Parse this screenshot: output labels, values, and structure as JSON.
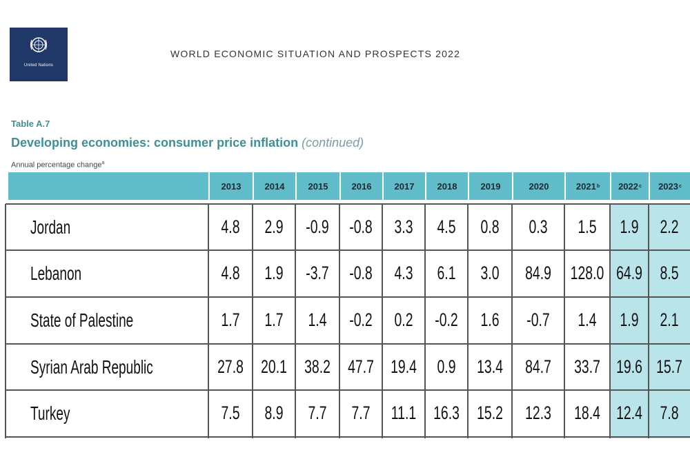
{
  "logo": {
    "text": "United Nations",
    "icon": "un-emblem-icon"
  },
  "header": {
    "title": "WORLD ECONOMIC SITUATION AND PROSPECTS 2022"
  },
  "table": {
    "label": "Table A.7",
    "title": "Developing economies: consumer price inflation",
    "title_note": "(continued)",
    "units": "Annual percentage change",
    "units_note": "a",
    "columns": [
      {
        "year": "2013",
        "note": ""
      },
      {
        "year": "2014",
        "note": ""
      },
      {
        "year": "2015",
        "note": ""
      },
      {
        "year": "2016",
        "note": ""
      },
      {
        "year": "2017",
        "note": ""
      },
      {
        "year": "2018",
        "note": ""
      },
      {
        "year": "2019",
        "note": ""
      },
      {
        "year": "2020",
        "note": ""
      },
      {
        "year": "2021",
        "note": "b"
      },
      {
        "year": "2022",
        "note": "c"
      },
      {
        "year": "2023",
        "note": "c"
      }
    ],
    "rows": [
      {
        "country": "Jordan",
        "values": [
          "4.8",
          "2.9",
          "-0.9",
          "-0.8",
          "3.3",
          "4.5",
          "0.8",
          "0.3",
          "1.5",
          "1.9",
          "2.2"
        ]
      },
      {
        "country": "Lebanon",
        "values": [
          "4.8",
          "1.9",
          "-3.7",
          "-0.8",
          "4.3",
          "6.1",
          "3.0",
          "84.9",
          "128.0",
          "64.9",
          "8.5"
        ]
      },
      {
        "country": "State of Palestine",
        "values": [
          "1.7",
          "1.7",
          "1.4",
          "-0.2",
          "0.2",
          "-0.2",
          "1.6",
          "-0.7",
          "1.4",
          "1.9",
          "2.1"
        ]
      },
      {
        "country": "Syrian Arab Republic",
        "values": [
          "27.8",
          "20.1",
          "38.2",
          "47.7",
          "19.4",
          "0.9",
          "13.4",
          "84.7",
          "33.7",
          "19.6",
          "15.7"
        ]
      },
      {
        "country": "Turkey",
        "values": [
          "7.5",
          "8.9",
          "7.7",
          "7.7",
          "11.1",
          "16.3",
          "15.2",
          "12.3",
          "18.4",
          "12.4",
          "7.8"
        ]
      }
    ],
    "colors": {
      "accent": "#3f8f95",
      "header_band": "#5fbcc8",
      "projection_shade": "#b9e4ea",
      "logo_bg": "#1f3868"
    }
  }
}
